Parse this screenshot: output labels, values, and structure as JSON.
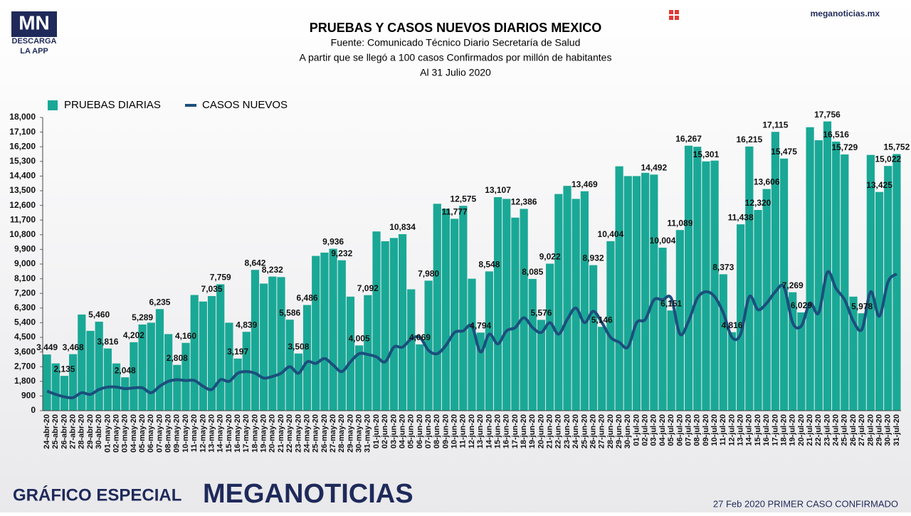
{
  "header": {
    "logo": "MN",
    "download": "DESCARGA",
    "app": "LA APP",
    "site": "meganoticias.mx"
  },
  "footer": {
    "left": "GRÁFICO ESPECIAL",
    "brand": "MEGANOTICIAS",
    "note": "27 Feb 2020 PRIMER CASO CONFIRMADO"
  },
  "chart_data": {
    "type": "bar-line",
    "title": "PRUEBAS Y CASOS NUEVOS DIARIOS MEXICO",
    "subtitle": [
      "Fuente: Comunicado Técnico Diario Secretaría de Salud",
      "A partir que se llegó a 100 casos Confirmados por millón de habitantes",
      "Al 31 Julio 2020"
    ],
    "categories": [
      "24-abr-20",
      "25-abr-20",
      "26-abr-20",
      "27-abr-20",
      "28-abr-20",
      "29-abr-20",
      "30-abr-20",
      "01-may-20",
      "02-may-20",
      "03-may-20",
      "04-may-20",
      "05-may-20",
      "06-may-20",
      "07-may-20",
      "08-may-20",
      "09-may-20",
      "10-may-20",
      "11-may-20",
      "12-may-20",
      "13-may-20",
      "14-may-20",
      "15-may-20",
      "16-may-20",
      "17-may-20",
      "18-may-20",
      "19-may-20",
      "20-may-20",
      "21-may-20",
      "22-may-20",
      "23-may-20",
      "24-may-20",
      "25-may-20",
      "26-may-20",
      "27-may-20",
      "28-may-20",
      "29-may-20",
      "30-may-20",
      "31-may-20",
      "01-jun-20",
      "02-jun-20",
      "03-jun-20",
      "04-jun-20",
      "05-jun-20",
      "06-jun-20",
      "07-jun-20",
      "08-jun-20",
      "09-jun-20",
      "10-jun-20",
      "11-jun-20",
      "12-jun-20",
      "13-jun-20",
      "14-jun-20",
      "15-jun-20",
      "16-jun-20",
      "17-jun-20",
      "18-jun-20",
      "19-jun-20",
      "20-jun-20",
      "21-jun-20",
      "22-jun-20",
      "23-jun-20",
      "24-jun-20",
      "25-jun-20",
      "26-jun-20",
      "27-jun-20",
      "28-jun-20",
      "29-jun-20",
      "30-jun-20",
      "01-jul-20",
      "02-jul-20",
      "03-jul-20",
      "04-jul-20",
      "05-jul-20",
      "06-jul-20",
      "07-jul-20",
      "08-jul-20",
      "09-jul-20",
      "10-jul-20",
      "11-jul-20",
      "12-jul-20",
      "13-jul-20",
      "14-jul-20",
      "15-jul-20",
      "16-jul-20",
      "17-jul-20",
      "18-jul-20",
      "19-jul-20",
      "20-jul-20",
      "21-jul-20",
      "22-jul-20",
      "23-jul-20",
      "24-jul-20",
      "25-jul-20",
      "26-jul-20",
      "27-jul-20",
      "28-jul-20",
      "29-jul-20",
      "30-jul-20",
      "31-jul-20"
    ],
    "series": [
      {
        "name": "PRUEBAS DIARIAS",
        "type": "bar",
        "color": "#1aa896",
        "values": [
          3449,
          2900,
          2135,
          3468,
          5900,
          4900,
          5460,
          3816,
          2900,
          2048,
          4202,
          5289,
          5400,
          6235,
          4700,
          2808,
          4160,
          7100,
          6700,
          7035,
          7759,
          5400,
          3197,
          4839,
          8642,
          7800,
          8232,
          8200,
          5586,
          3508,
          6486,
          9500,
          9700,
          9936,
          9232,
          7000,
          4005,
          7092,
          11000,
          10400,
          10600,
          10834,
          7450,
          4069,
          7980,
          12700,
          12400,
          11777,
          12575,
          8100,
          4794,
          8548,
          13107,
          13000,
          11850,
          12386,
          8085,
          5576,
          9022,
          13300,
          13800,
          13000,
          13469,
          8932,
          5146,
          10404,
          15000,
          14400,
          14400,
          14600,
          14492,
          10004,
          6151,
          11089,
          16267,
          16200,
          15301,
          15350,
          8373,
          4816,
          11438,
          16215,
          12320,
          13606,
          17115,
          15475,
          7269,
          6029,
          17400,
          16600,
          17756,
          16516,
          15729,
          7000,
          5978,
          15700,
          13425,
          15022,
          15752
        ],
        "value_labels": [
          "3,449",
          null,
          "2,135",
          "3,468",
          null,
          null,
          "5,460",
          "3,816",
          null,
          "2,048",
          "4,202",
          "5,289",
          null,
          "6,235",
          null,
          "2,808",
          "4,160",
          null,
          null,
          "7,035",
          "7,759",
          null,
          "3,197",
          "4,839",
          "8,642",
          null,
          "8,232",
          null,
          "5,586",
          "3,508",
          "6,486",
          null,
          null,
          "9,936",
          "9,232",
          null,
          "4,005",
          "7,092",
          null,
          null,
          null,
          "10,834",
          null,
          "4,069",
          "7,980",
          null,
          null,
          "11,777",
          "12,575",
          null,
          "4,794",
          "8,548",
          "13,107",
          null,
          null,
          "12,386",
          "8,085",
          "5,576",
          "9,022",
          null,
          null,
          null,
          "13,469",
          "8,932",
          "5,146",
          "10,404",
          null,
          null,
          null,
          null,
          "14,492",
          "10,004",
          "6,151",
          "11,089",
          "16,267",
          null,
          "15,301",
          null,
          "8,373",
          "4,816",
          "11,438",
          "16,215",
          "12,320",
          "13,606",
          "17,115",
          "15,475",
          "7,269",
          "6,029",
          null,
          null,
          "17,756",
          "16,516",
          "15,729",
          null,
          "5,978",
          null,
          "13,425",
          "15,022",
          "15,752"
        ]
      },
      {
        "name": "CASOS NUEVOS",
        "type": "line",
        "color": "#1b4f7c",
        "values": [
          1200,
          1000,
          850,
          800,
          1100,
          1000,
          1300,
          1450,
          1450,
          1350,
          1400,
          1400,
          1100,
          1500,
          1800,
          1900,
          1850,
          1850,
          1500,
          1300,
          1900,
          1800,
          2300,
          2400,
          2300,
          2000,
          2100,
          2300,
          2700,
          2300,
          3000,
          2900,
          3200,
          2800,
          2400,
          3000,
          3500,
          3450,
          3300,
          3000,
          3900,
          3900,
          4400,
          4500,
          3700,
          3500,
          4000,
          4800,
          4900,
          5200,
          3600,
          4700,
          4100,
          4900,
          5100,
          5700,
          5100,
          4800,
          5400,
          4700,
          5600,
          6300,
          5400,
          6100,
          5400,
          4500,
          4200,
          3900,
          5400,
          5600,
          6800,
          6800,
          6900,
          4700,
          5500,
          6900,
          7300,
          7000,
          6000,
          4500,
          4700,
          7000,
          6200,
          6600,
          7300,
          7600,
          5400,
          5200,
          6600,
          6000,
          8500,
          7500,
          6800,
          5500,
          5000,
          7300,
          5800,
          7900,
          8400
        ]
      }
    ],
    "ylim": [
      0,
      18000
    ],
    "yticks": [
      0,
      900,
      {
        "value": 1800,
        "label": "1,800"
      },
      {
        "value": 2700,
        "label": "2,700"
      },
      {
        "value": 3600,
        "label": "3,600"
      },
      {
        "value": 4500,
        "label": "4,500"
      },
      {
        "value": 5400,
        "label": "5,400"
      },
      {
        "value": 6300,
        "label": "6,300"
      },
      {
        "value": 7200,
        "label": "7,200"
      },
      {
        "value": 8100,
        "label": "8,100"
      },
      {
        "value": 9000,
        "label": "9,000"
      },
      {
        "value": 9900,
        "label": "9,900"
      },
      {
        "value": 10800,
        "label": "10,800"
      },
      {
        "value": 11700,
        "label": "11,700"
      },
      {
        "value": 12600,
        "label": "12,600"
      },
      {
        "value": 13500,
        "label": "13,500"
      },
      {
        "value": 14400,
        "label": "14,400"
      },
      {
        "value": 15300,
        "label": "15,300"
      },
      {
        "value": 16200,
        "label": "16,200"
      },
      {
        "value": 17100,
        "label": "17,100"
      },
      {
        "value": 18000,
        "label": "18,000"
      }
    ],
    "grid": false,
    "legend": "top-left"
  }
}
